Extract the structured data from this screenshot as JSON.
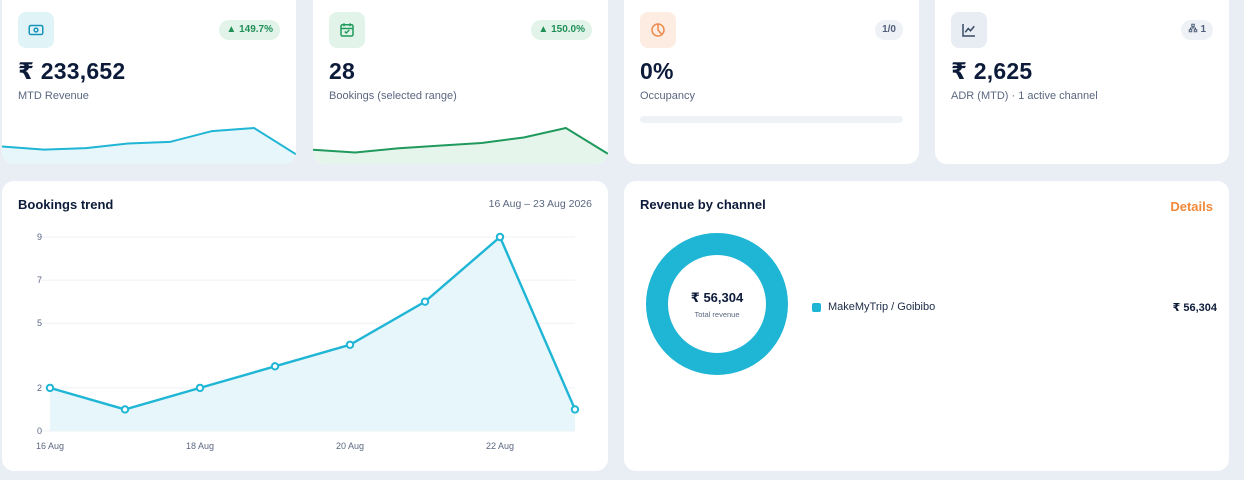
{
  "kpis": {
    "revenue": {
      "value": "₹ 233,652",
      "label": "MTD Revenue",
      "badge": "▲ 149.7%",
      "spark": [
        10,
        8,
        9,
        12,
        13,
        20,
        22,
        5
      ]
    },
    "bookings": {
      "value": "28",
      "label": "Bookings (selected range)",
      "badge": "▲ 150.0%",
      "spark": [
        9,
        7,
        10,
        12,
        14,
        18,
        25,
        6
      ]
    },
    "occupancy": {
      "value": "0%",
      "label": "Occupancy",
      "badge": "1/0",
      "progress_percent": 0
    },
    "adr": {
      "value": "₹ 2,625",
      "label": "ADR (MTD) · 1 active channel",
      "badge": "1"
    }
  },
  "bookings_trend": {
    "title": "Bookings trend",
    "date_range": "16 Aug – 23 Aug 2026"
  },
  "revenue_by_channel": {
    "title": "Revenue by channel",
    "details_label": "Details",
    "center_value": "₹ 56,304",
    "center_caption": "Total revenue",
    "channels": [
      {
        "name": "MakeMyTrip / Goibibo",
        "amount": "₹ 56,304",
        "color": "#1fb5d5"
      }
    ]
  },
  "chart_data": {
    "type": "area",
    "title": "Bookings trend",
    "x": [
      "16 Aug",
      "17 Aug",
      "18 Aug",
      "19 Aug",
      "20 Aug",
      "21 Aug",
      "22 Aug",
      "23 Aug"
    ],
    "x_tick_labels": [
      "16 Aug",
      "18 Aug",
      "20 Aug",
      "22 Aug"
    ],
    "series": [
      {
        "values": [
          2,
          1,
          2,
          3,
          4,
          6,
          9,
          1
        ],
        "color": "#1fb5d5"
      }
    ],
    "y_tick_labels": [
      9,
      7,
      5,
      2,
      0
    ],
    "ylim": [
      0,
      9
    ],
    "grid": true
  }
}
